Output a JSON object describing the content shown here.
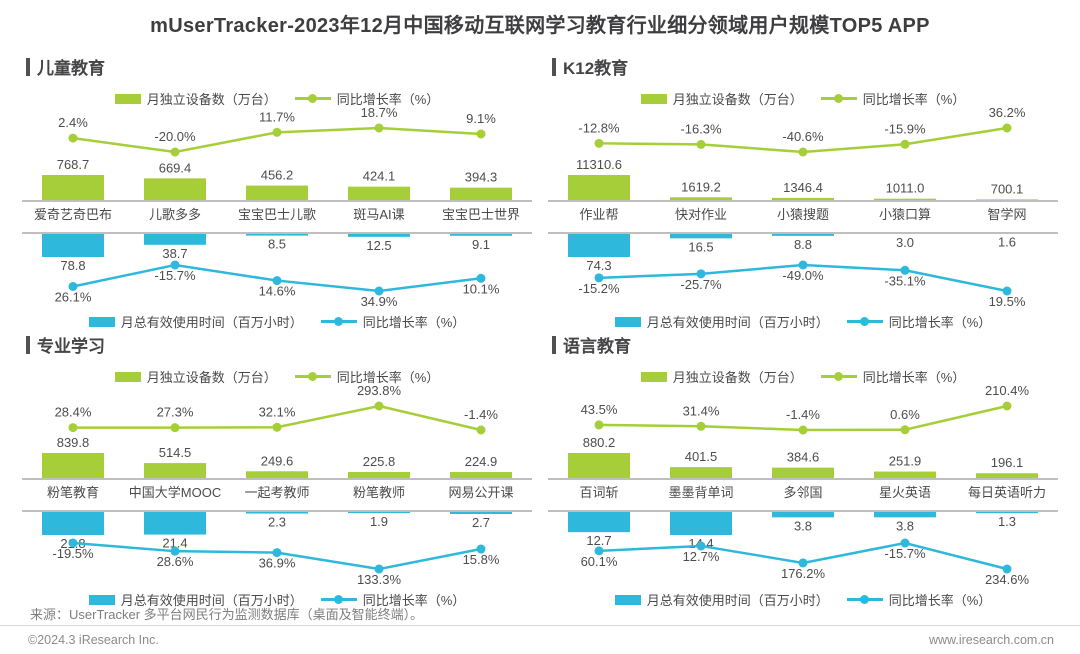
{
  "title": "mUserTracker-2023年12月中国移动互联网学习教育行业细分领域用户规模TOP5 APP",
  "colors": {
    "green": "#a6ce39",
    "blue": "#2db8dc",
    "axis": "#bfbfbf",
    "text": "#4e4c4d"
  },
  "legend": {
    "devices": "月独立设备数（万台）",
    "usage": "月总有效使用时间（百万小时）",
    "growth": "同比增长率（%）"
  },
  "footer": {
    "source": "来源：UserTracker 多平台网民行为监测数据库（桌面及智能终端）。",
    "copyright": "©2024.3 iResearch Inc.",
    "website": "www.iresearch.com.cn"
  },
  "chart_data": [
    {
      "section": "儿童教育",
      "type": "bar",
      "categories": [
        "爱奇艺奇巴布",
        "儿歌多多",
        "宝宝巴士儿歌",
        "斑马AI课",
        "宝宝巴士世界"
      ],
      "series": [
        {
          "name": "月独立设备数（万台）",
          "kind": "bar",
          "color": "#a6ce39",
          "values": [
            768.7,
            669.4,
            456.2,
            424.1,
            394.3
          ]
        },
        {
          "name": "同比增长率（%）",
          "kind": "line",
          "color": "#a6ce39",
          "unit": "%",
          "values": [
            2.4,
            -20.0,
            11.7,
            18.7,
            9.1
          ]
        },
        {
          "name": "月总有效使用时间（百万小时）",
          "kind": "bar",
          "mirrored": true,
          "color": "#2db8dc",
          "values": [
            78.8,
            38.7,
            8.5,
            12.5,
            9.1
          ]
        },
        {
          "name": "同比增长率（%）",
          "kind": "line",
          "mirrored": true,
          "color": "#2db8dc",
          "unit": "%",
          "values": [
            26.1,
            -15.7,
            14.6,
            34.9,
            10.1
          ]
        }
      ]
    },
    {
      "section": "K12教育",
      "type": "bar",
      "categories": [
        "作业帮",
        "快对作业",
        "小猿搜题",
        "小猿口算",
        "智学网"
      ],
      "series": [
        {
          "name": "月独立设备数（万台）",
          "kind": "bar",
          "color": "#a6ce39",
          "values": [
            11310.6,
            1619.2,
            1346.4,
            1011.0,
            700.1
          ]
        },
        {
          "name": "同比增长率（%）",
          "kind": "line",
          "color": "#a6ce39",
          "unit": "%",
          "values": [
            -12.8,
            -16.3,
            -40.6,
            -15.9,
            36.2
          ]
        },
        {
          "name": "月总有效使用时间（百万小时）",
          "kind": "bar",
          "mirrored": true,
          "color": "#2db8dc",
          "values": [
            74.3,
            16.5,
            8.8,
            3.0,
            1.6
          ]
        },
        {
          "name": "同比增长率（%）",
          "kind": "line",
          "mirrored": true,
          "color": "#2db8dc",
          "unit": "%",
          "values": [
            -15.2,
            -25.7,
            -49.0,
            -35.1,
            19.5
          ]
        }
      ]
    },
    {
      "section": "专业学习",
      "type": "bar",
      "categories": [
        "粉笔教育",
        "中国大学MOOC",
        "一起考教师",
        "粉笔教师",
        "网易公开课"
      ],
      "series": [
        {
          "name": "月独立设备数（万台）",
          "kind": "bar",
          "color": "#a6ce39",
          "values": [
            839.8,
            514.5,
            249.6,
            225.8,
            224.9
          ]
        },
        {
          "name": "同比增长率（%）",
          "kind": "line",
          "color": "#a6ce39",
          "unit": "%",
          "values": [
            28.4,
            27.3,
            32.1,
            293.8,
            -1.4
          ]
        },
        {
          "name": "月总有效使用时间（百万小时）",
          "kind": "bar",
          "mirrored": true,
          "color": "#2db8dc",
          "values": [
            21.8,
            21.4,
            2.3,
            1.9,
            2.7
          ]
        },
        {
          "name": "同比增长率（%）",
          "kind": "line",
          "mirrored": true,
          "color": "#2db8dc",
          "unit": "%",
          "values": [
            -19.5,
            28.6,
            36.9,
            133.3,
            15.8
          ]
        }
      ]
    },
    {
      "section": "语言教育",
      "type": "bar",
      "categories": [
        "百词斩",
        "墨墨背单词",
        "多邻国",
        "星火英语",
        "每日英语听力"
      ],
      "series": [
        {
          "name": "月独立设备数（万台）",
          "kind": "bar",
          "color": "#a6ce39",
          "values": [
            880.2,
            401.5,
            384.6,
            251.9,
            196.1
          ]
        },
        {
          "name": "同比增长率（%）",
          "kind": "line",
          "color": "#a6ce39",
          "unit": "%",
          "values": [
            43.5,
            31.4,
            -1.4,
            0.6,
            210.4
          ]
        },
        {
          "name": "月总有效使用时间（百万小时）",
          "kind": "bar",
          "mirrored": true,
          "color": "#2db8dc",
          "values": [
            12.7,
            14.4,
            3.8,
            3.8,
            1.3
          ]
        },
        {
          "name": "同比增长率（%）",
          "kind": "line",
          "mirrored": true,
          "color": "#2db8dc",
          "unit": "%",
          "values": [
            60.1,
            12.7,
            176.2,
            -15.7,
            234.6
          ]
        }
      ]
    }
  ]
}
